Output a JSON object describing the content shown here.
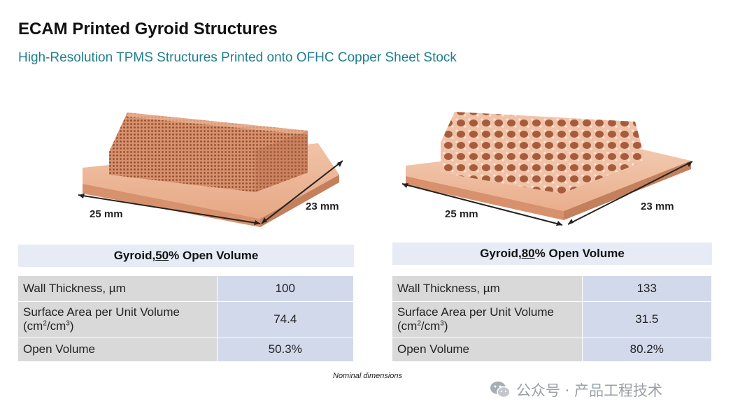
{
  "title": "ECAM Printed Gyroid Structures",
  "subtitle": "High-Resolution TPMS Structures Printed onto OFHC Copper Sheet Stock",
  "samples": [
    {
      "header_prefix": "Gyroid, ",
      "header_percent": "50",
      "header_suffix": "% Open Volume",
      "dim_width": "25 mm",
      "dim_depth": "23 mm",
      "rows": [
        {
          "label": "Wall Thickness, µm",
          "value": "100"
        },
        {
          "label_line1": "Surface Area per Unit Volume",
          "label_line2_a": "(cm",
          "label_sup1": "2",
          "label_line2_b": "/cm",
          "label_sup2": "3",
          "label_line2_c": ")",
          "value": "74.4"
        },
        {
          "label": "Open Volume",
          "value": "50.3%"
        }
      ]
    },
    {
      "header_prefix": "Gyroid, ",
      "header_percent": "80",
      "header_suffix": "% Open Volume",
      "dim_width": "25 mm",
      "dim_depth": "23 mm",
      "rows": [
        {
          "label": "Wall Thickness, µm",
          "value": "133"
        },
        {
          "label_line1": "Surface Area per Unit Volume",
          "label_line2_a": "(cm",
          "label_sup1": "2",
          "label_line2_b": "/cm",
          "label_sup2": "3",
          "label_line2_c": ")",
          "value": "31.5"
        },
        {
          "label": "Open Volume",
          "value": "80.2%"
        }
      ]
    }
  ],
  "note": "Nominal dimensions",
  "watermark": "公众号 · 产品工程技术",
  "colors": {
    "copper": "#e3a07f",
    "copper_dark": "#c77a55",
    "subtitle": "#1f7f8f",
    "header_bg": "#e7ebf5",
    "label_bg": "#d9d9d9",
    "value_bg": "#d2d9ea"
  }
}
